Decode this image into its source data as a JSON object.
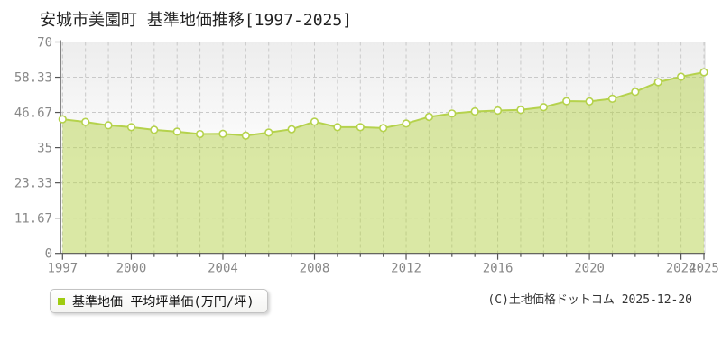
{
  "title": "安城市美園町 基準地価推移[1997-2025]",
  "legend": {
    "label": "基準地価 平均坪単価(万円/坪)",
    "marker_color": "#9fcc11"
  },
  "copyright": "(C)土地価格ドットコム 2025-12-20",
  "chart_data": {
    "type": "area",
    "series_name": "基準地価",
    "ylabel": "平均坪単価(万円/坪)",
    "x": [
      1997,
      1998,
      1999,
      2000,
      2001,
      2002,
      2003,
      2004,
      2005,
      2006,
      2007,
      2008,
      2009,
      2010,
      2011,
      2012,
      2013,
      2014,
      2015,
      2016,
      2017,
      2018,
      2019,
      2020,
      2021,
      2022,
      2023,
      2024,
      2025
    ],
    "values": [
      44.4,
      43.5,
      42.4,
      41.8,
      40.9,
      40.3,
      39.5,
      39.6,
      39.0,
      40.0,
      41.1,
      43.6,
      41.8,
      41.8,
      41.5,
      43.0,
      45.2,
      46.3,
      47.0,
      47.3,
      47.5,
      48.4,
      50.4,
      50.3,
      51.2,
      53.5,
      56.7,
      58.5,
      60.0
    ],
    "xlim": [
      1997,
      2025
    ],
    "ylim": [
      0,
      70
    ],
    "x_tick_labels": [
      "1997",
      "2000",
      "2004",
      "2008",
      "2012",
      "2016",
      "2020",
      "2024",
      "2025"
    ],
    "x_tick_years": [
      1997,
      2000,
      2004,
      2008,
      2012,
      2016,
      2020,
      2024,
      2025
    ],
    "y_ticks": [
      0,
      11.67,
      23.33,
      35,
      46.67,
      58.33,
      70
    ],
    "y_tick_labels": [
      "0",
      "11.67",
      "23.33",
      "35",
      "46.67",
      "58.33",
      "70"
    ],
    "grid": true,
    "legend_position": "bottom-left",
    "colors": {
      "line": "#b5d24c",
      "fill": "#b5d24c",
      "fill_opacity": 0.5,
      "marker_fill": "#ffffff",
      "marker_stroke": "#b5d24c",
      "grid": "#c9c9c9",
      "axis": "#555555",
      "tick_text": "#888888",
      "plot_bg_top": "#ededed",
      "plot_bg_bottom": "#ffffff",
      "border": "#d8d8d8"
    }
  }
}
